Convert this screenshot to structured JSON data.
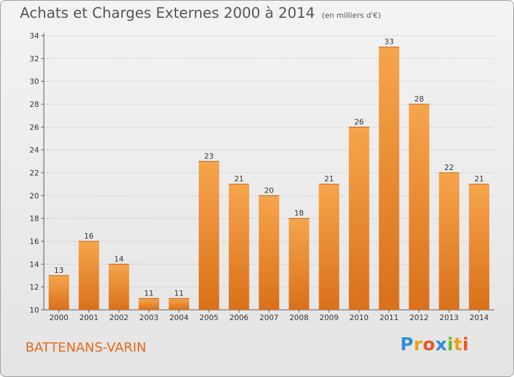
{
  "chart_data": {
    "type": "bar",
    "title": "Achats et Charges Externes 2000 à 2014",
    "subtitle": "(en milliers d'€)",
    "categories": [
      "2000",
      "2001",
      "2002",
      "2003",
      "2004",
      "2005",
      "2006",
      "2007",
      "2008",
      "2009",
      "2010",
      "2011",
      "2012",
      "2013",
      "2014"
    ],
    "values": [
      13,
      16,
      14,
      11,
      11,
      23,
      21,
      20,
      18,
      21,
      26,
      33,
      28,
      22,
      21
    ],
    "ylim": [
      10,
      34
    ],
    "yticks": [
      10,
      12,
      14,
      16,
      18,
      20,
      22,
      24,
      26,
      28,
      30,
      32,
      34
    ],
    "grid": "horizontal-dashed",
    "bar_color": "#f0983c"
  },
  "commune": "BATTENANS-VARIN",
  "brand": {
    "letters": [
      "P",
      "r",
      "o",
      "x",
      "i",
      "t",
      "i"
    ],
    "colors": [
      "#2f8fd8",
      "#e8a21a",
      "#e8551f",
      "#2f8fd8",
      "#6bb82b",
      "#e8a21a",
      "#e8551f"
    ]
  }
}
